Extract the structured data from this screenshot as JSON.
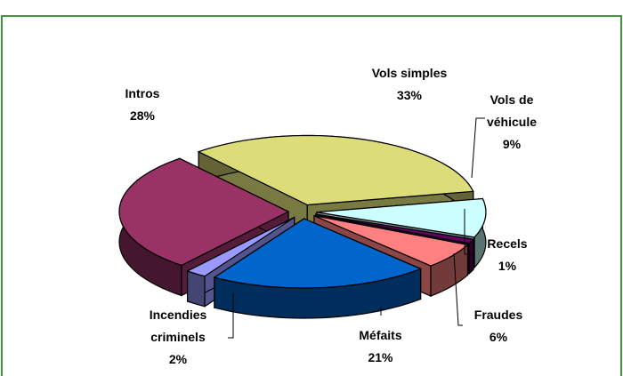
{
  "chart_data": {
    "type": "pie",
    "style": "3d-exploded",
    "categories": [
      "Vols simples",
      "Vols de véhicule",
      "Recels",
      "Fraudes",
      "Méfaits",
      "Incendies criminels",
      "Intros"
    ],
    "values": [
      33,
      9,
      1,
      6,
      21,
      2,
      28
    ],
    "value_labels": [
      "33%",
      "9%",
      "1%",
      "6%",
      "21%",
      "2%",
      "28%"
    ],
    "colors": [
      "#dcdc78",
      "#ccffff",
      "#660066",
      "#ff8080",
      "#0066cc",
      "#9999ff",
      "#993366"
    ]
  }
}
